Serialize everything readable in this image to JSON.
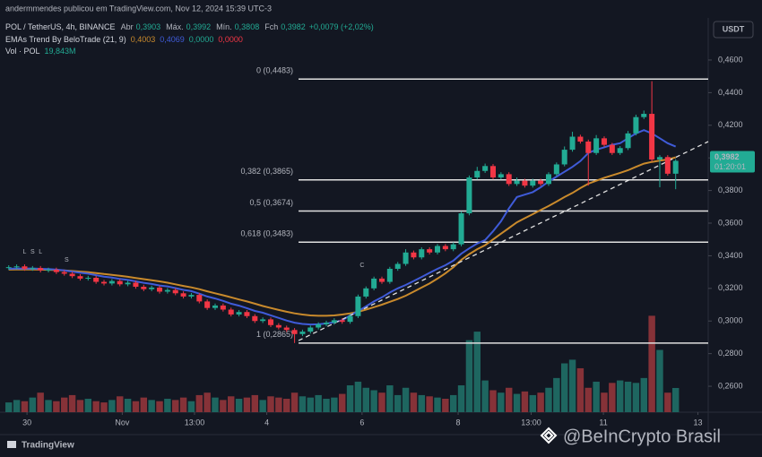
{
  "header": {
    "attribution": "andermmendes publicou em TradingView.com, Nov 12, 2024 15:39 UTC-3",
    "currency": "USDT",
    "watermark": "@BeInCrypto Brasil",
    "logo": "TradingView"
  },
  "chart_data": {
    "type": "candlestick",
    "title": "POL / TetherUS, 4h, BINANCE",
    "ohlc_legend": [
      {
        "label": "Abr",
        "value": "0,3903"
      },
      {
        "label": "Máx.",
        "value": "0,3992"
      },
      {
        "label": "Mín.",
        "value": "0,3808"
      },
      {
        "label": "Fch",
        "value": "0,3982"
      }
    ],
    "change": "+0,0079 (+2,02%)",
    "up_color": "#22ab94",
    "down_color": "#f23645",
    "volume_up_color": "#1e6660",
    "volume_down_color": "#863238",
    "open": [
      0.3325,
      0.333,
      0.3335,
      0.332,
      0.3325,
      0.331,
      0.3315,
      0.33,
      0.329,
      0.3275,
      0.326,
      0.3265,
      0.324,
      0.323,
      0.3245,
      0.3225,
      0.3235,
      0.321,
      0.3195,
      0.3205,
      0.318,
      0.319,
      0.317,
      0.315,
      0.316,
      0.312,
      0.308,
      0.3095,
      0.307,
      0.304,
      0.3055,
      0.303,
      0.3,
      0.301,
      0.2975,
      0.296,
      0.2945,
      0.292,
      0.2935,
      0.296,
      0.298,
      0.299,
      0.3005,
      0.2995,
      0.303,
      0.315,
      0.32,
      0.326,
      0.324,
      0.332,
      0.335,
      0.342,
      0.339,
      0.344,
      0.342,
      0.346,
      0.344,
      0.347,
      0.366,
      0.388,
      0.392,
      0.395,
      0.388,
      0.39,
      0.384,
      0.386,
      0.383,
      0.386,
      0.384,
      0.39,
      0.396,
      0.405,
      0.413,
      0.41,
      0.403,
      0.412,
      0.408,
      0.403,
      0.406,
      0.415,
      0.425,
      0.427,
      0.399,
      0.4005,
      0.3903
    ],
    "high": [
      0.3342,
      0.3347,
      0.3347,
      0.3337,
      0.3337,
      0.3327,
      0.3327,
      0.3312,
      0.3302,
      0.3287,
      0.3277,
      0.3277,
      0.3252,
      0.3257,
      0.3257,
      0.3247,
      0.3247,
      0.3222,
      0.3217,
      0.3217,
      0.3202,
      0.3202,
      0.3182,
      0.3172,
      0.3172,
      0.3132,
      0.3107,
      0.3107,
      0.3082,
      0.3067,
      0.3067,
      0.3042,
      0.3022,
      0.3022,
      0.2987,
      0.2972,
      0.2957,
      0.2947,
      0.2972,
      0.2992,
      0.3002,
      0.3017,
      0.3017,
      0.3042,
      0.3162,
      0.3212,
      0.3272,
      0.3272,
      0.3332,
      0.3362,
      0.344,
      0.3432,
      0.3452,
      0.3452,
      0.3472,
      0.3472,
      0.3482,
      0.3672,
      0.3892,
      0.3945,
      0.3965,
      0.3962,
      0.3912,
      0.3912,
      0.388,
      0.3872,
      0.3872,
      0.3872,
      0.3912,
      0.3972,
      0.407,
      0.416,
      0.4142,
      0.4112,
      0.414,
      0.4132,
      0.4092,
      0.4072,
      0.4165,
      0.4265,
      0.429,
      0.447,
      0.4017,
      0.4017,
      0.3992
    ],
    "low": [
      0.3313,
      0.3318,
      0.3308,
      0.3308,
      0.3298,
      0.3298,
      0.3288,
      0.3278,
      0.3263,
      0.3248,
      0.3248,
      0.3228,
      0.3218,
      0.3218,
      0.3213,
      0.3213,
      0.3198,
      0.3183,
      0.3183,
      0.3168,
      0.3168,
      0.3158,
      0.3138,
      0.3138,
      0.3108,
      0.3068,
      0.3068,
      0.3058,
      0.3028,
      0.3028,
      0.3018,
      0.2988,
      0.2988,
      0.2963,
      0.2948,
      0.2933,
      0.2865,
      0.2908,
      0.2923,
      0.2948,
      0.2968,
      0.2978,
      0.2983,
      0.2983,
      0.3018,
      0.3138,
      0.3188,
      0.3228,
      0.3228,
      0.3308,
      0.3338,
      0.3378,
      0.3378,
      0.3408,
      0.3408,
      0.3428,
      0.3428,
      0.3458,
      0.3648,
      0.3868,
      0.3908,
      0.3868,
      0.3868,
      0.3828,
      0.3828,
      0.3818,
      0.3818,
      0.3828,
      0.3828,
      0.3888,
      0.3948,
      0.4038,
      0.4088,
      0.383,
      0.4018,
      0.4068,
      0.4018,
      0.4018,
      0.4048,
      0.4138,
      0.4238,
      0.3978,
      0.382,
      0.3891,
      0.3808
    ],
    "close": [
      0.333,
      0.3335,
      0.332,
      0.3325,
      0.331,
      0.3315,
      0.33,
      0.329,
      0.3275,
      0.326,
      0.3265,
      0.324,
      0.323,
      0.3245,
      0.3225,
      0.3235,
      0.321,
      0.3195,
      0.3205,
      0.318,
      0.319,
      0.317,
      0.315,
      0.316,
      0.312,
      0.308,
      0.3095,
      0.307,
      0.304,
      0.3055,
      0.303,
      0.3,
      0.301,
      0.2975,
      0.296,
      0.2945,
      0.292,
      0.2935,
      0.296,
      0.298,
      0.299,
      0.3005,
      0.2995,
      0.303,
      0.315,
      0.32,
      0.326,
      0.324,
      0.332,
      0.335,
      0.342,
      0.339,
      0.344,
      0.342,
      0.346,
      0.344,
      0.347,
      0.366,
      0.388,
      0.392,
      0.395,
      0.388,
      0.39,
      0.384,
      0.386,
      0.383,
      0.386,
      0.384,
      0.39,
      0.396,
      0.405,
      0.413,
      0.41,
      0.403,
      0.412,
      0.408,
      0.403,
      0.406,
      0.415,
      0.425,
      0.427,
      0.399,
      0.4005,
      0.3903,
      0.3982
    ],
    "volume_name": "Vol · POL",
    "volume_value": "19,843M",
    "volume": [
      8,
      10,
      9,
      12,
      16,
      10,
      9,
      12,
      14,
      10,
      11,
      9,
      8,
      10,
      13,
      11,
      9,
      12,
      10,
      9,
      11,
      10,
      12,
      9,
      14,
      16,
      12,
      10,
      13,
      11,
      12,
      14,
      10,
      13,
      12,
      11,
      16,
      13,
      12,
      14,
      11,
      12,
      15,
      22,
      25,
      20,
      18,
      16,
      22,
      14,
      20,
      16,
      14,
      13,
      12,
      11,
      14,
      22,
      59,
      66,
      26,
      18,
      16,
      20,
      15,
      17,
      14,
      16,
      20,
      28,
      40,
      43,
      36,
      20,
      25,
      16,
      24,
      26,
      25,
      24,
      28,
      79,
      51,
      16,
      19.843
    ],
    "indicator": {
      "name": "EMAs Trend By BeloTrade (21, 9)",
      "values_printed": [
        {
          "text": "0,4003",
          "color": "#c98a2c"
        },
        {
          "text": "0,4069",
          "color": "#3f5bd8"
        },
        {
          "text": "0,0000",
          "color": "#22ab94"
        },
        {
          "text": "0,0000",
          "color": "#f23645"
        }
      ],
      "lines": [
        {
          "color": "#c98a2c",
          "values": [
            0.3315,
            0.3316,
            0.3316,
            0.3316,
            0.3315,
            0.3314,
            0.3312,
            0.331,
            0.3307,
            0.3303,
            0.3299,
            0.3294,
            0.3288,
            0.3283,
            0.3277,
            0.3271,
            0.3264,
            0.3257,
            0.325,
            0.3243,
            0.3235,
            0.3225,
            0.3215,
            0.3206,
            0.3195,
            0.3182,
            0.317,
            0.3158,
            0.3145,
            0.3132,
            0.312,
            0.3106,
            0.3092,
            0.308,
            0.3068,
            0.3057,
            0.3047,
            0.304,
            0.3034,
            0.3032,
            0.3032,
            0.3034,
            0.304,
            0.3047,
            0.3056,
            0.307,
            0.3085,
            0.31,
            0.3118,
            0.3135,
            0.3155,
            0.318,
            0.3205,
            0.323,
            0.326,
            0.3292,
            0.333,
            0.3375,
            0.341,
            0.344,
            0.3465,
            0.35,
            0.3535,
            0.357,
            0.3605,
            0.363,
            0.3655,
            0.368,
            0.3705,
            0.3732,
            0.376,
            0.3785,
            0.3815,
            0.3842,
            0.386,
            0.3878,
            0.3893,
            0.3908,
            0.3924,
            0.3945,
            0.3965,
            0.3975,
            0.3983,
            0.399,
            0.4003
          ]
        },
        {
          "color": "#3f5bd8",
          "values": [
            0.332,
            0.3322,
            0.3321,
            0.3322,
            0.332,
            0.3318,
            0.3315,
            0.331,
            0.3303,
            0.3296,
            0.329,
            0.3281,
            0.3272,
            0.3266,
            0.3258,
            0.3252,
            0.3243,
            0.3234,
            0.3227,
            0.3218,
            0.3212,
            0.3202,
            0.3191,
            0.3183,
            0.3168,
            0.315,
            0.3138,
            0.3123,
            0.3106,
            0.3094,
            0.3079,
            0.3062,
            0.3051,
            0.3035,
            0.3019,
            0.3003,
            0.299,
            0.2982,
            0.2979,
            0.298,
            0.2985,
            0.2992,
            0.3005,
            0.3034,
            0.306,
            0.309,
            0.312,
            0.3145,
            0.3175,
            0.32,
            0.3221,
            0.3245,
            0.327,
            0.3295,
            0.332,
            0.3342,
            0.337,
            0.3413,
            0.3445,
            0.3475,
            0.3496,
            0.355,
            0.3611,
            0.369,
            0.376,
            0.3775,
            0.379,
            0.382,
            0.3855,
            0.3885,
            0.3915,
            0.3945,
            0.398,
            0.403,
            0.405,
            0.4065,
            0.408,
            0.409,
            0.412,
            0.415,
            0.417,
            0.415,
            0.412,
            0.409,
            0.4069
          ]
        }
      ]
    },
    "xlim": [
      -1.1,
      88.1
    ],
    "xticks": [
      {
        "value": 2.3,
        "label": "30"
      },
      {
        "value": 14.3,
        "label": "Nov"
      },
      {
        "value": 23.4,
        "label": "13:00"
      },
      {
        "value": 32.5,
        "label": "4"
      },
      {
        "value": 44.5,
        "label": "6"
      },
      {
        "value": 56.6,
        "label": "8"
      },
      {
        "value": 65.8,
        "label": "13:00"
      },
      {
        "value": 74.9,
        "label": "11"
      },
      {
        "value": 86.8,
        "label": "13"
      }
    ],
    "ylim": [
      0.2441,
      0.4858
    ],
    "yticks": [
      {
        "value": 0.26,
        "label": "0,2600"
      },
      {
        "value": 0.28,
        "label": "0,2800"
      },
      {
        "value": 0.3,
        "label": "0,3000"
      },
      {
        "value": 0.32,
        "label": "0,3200"
      },
      {
        "value": 0.34,
        "label": "0,3400"
      },
      {
        "value": 0.36,
        "label": "0,3600"
      },
      {
        "value": 0.38,
        "label": "0,3800"
      },
      {
        "value": 0.4,
        "label": "0,4000"
      },
      {
        "value": 0.42,
        "label": "0,4200"
      },
      {
        "value": 0.44,
        "label": "0,4400"
      },
      {
        "value": 0.46,
        "label": "0,4600"
      }
    ],
    "y2lim": [
      0,
      323
    ],
    "last_price": {
      "value": 0.3982,
      "label": "0,3982",
      "countdown": "01:20:01"
    },
    "fib_start": 36.5,
    "fib_levels": [
      {
        "value": 0.4483,
        "label": "0 (0,4483)"
      },
      {
        "value": 0.3865,
        "label": "0,382 (0,3865)"
      },
      {
        "value": 0.3674,
        "label": "0,5 (0,3674)"
      },
      {
        "value": 0.3483,
        "label": "0,618 (0,3483)"
      },
      {
        "value": 0.2865,
        "label": "1 (0,2865)"
      }
    ],
    "trendline": {
      "x": [
        36.5,
        88.1
      ],
      "y": [
        0.288,
        0.41
      ]
    },
    "signals": [
      {
        "index": 2,
        "price": 0.3424,
        "label": "L",
        "color": "#8a8f98"
      },
      {
        "index": 3,
        "price": 0.3424,
        "label": "S",
        "color": "#f23645"
      },
      {
        "index": 4,
        "price": 0.3424,
        "label": "L",
        "color": "#22ab94"
      },
      {
        "index": 7.3,
        "price": 0.3375,
        "label": "S",
        "color": "#f23645"
      },
      {
        "index": 44.5,
        "price": 0.3342,
        "label": "C",
        "color": "#22ab94"
      }
    ]
  }
}
